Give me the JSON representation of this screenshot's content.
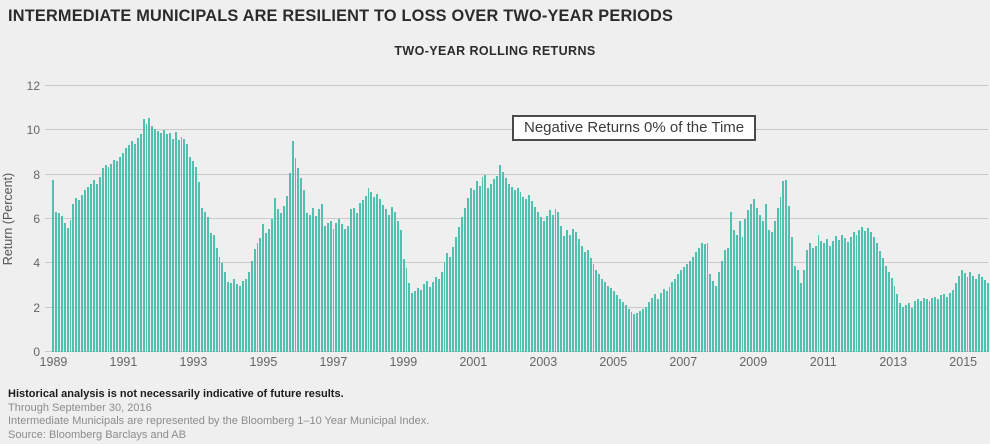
{
  "header": {
    "title": "INTERMEDIATE MUNICIPALS ARE RESILIENT TO LOSS OVER TWO-YEAR PERIODS"
  },
  "chart": {
    "subtitle": "TWO-YEAR ROLLING RETURNS",
    "annotation": "Negative Returns 0% of the Time",
    "y_axis_label": "Return (Percent)"
  },
  "chart_data": {
    "type": "bar",
    "title": "TWO-YEAR ROLLING RETURNS",
    "xlabel": "",
    "ylabel": "Return (Percent)",
    "ylim": [
      0,
      12
    ],
    "yticks": [
      0,
      2,
      4,
      6,
      8,
      10,
      12
    ],
    "grid": "horizontal",
    "bar_color": "#52c0ae",
    "x_start": "1989-01",
    "x_end": "2015-09",
    "x_frequency": "monthly",
    "xtick_labels": [
      "1989",
      "1991",
      "1993",
      "1995",
      "1997",
      "1999",
      "2001",
      "2003",
      "2005",
      "2007",
      "2009",
      "2011",
      "2013",
      "2015"
    ],
    "xtick_month_indices": [
      0,
      24,
      48,
      72,
      96,
      120,
      144,
      168,
      192,
      216,
      240,
      264,
      288,
      312
    ],
    "annotation": "Negative Returns 0% of the Time",
    "values": [
      7.76,
      6.33,
      6.26,
      6.14,
      5.81,
      5.58,
      5.96,
      6.7,
      6.93,
      6.85,
      7.08,
      7.31,
      7.45,
      7.6,
      7.75,
      7.6,
      7.9,
      8.3,
      8.45,
      8.35,
      8.5,
      8.65,
      8.6,
      8.8,
      9.0,
      9.2,
      9.35,
      9.5,
      9.4,
      9.65,
      9.85,
      10.5,
      10.3,
      10.55,
      10.2,
      10.05,
      9.95,
      9.9,
      10.0,
      9.85,
      9.9,
      9.6,
      9.92,
      9.55,
      9.7,
      9.6,
      9.4,
      8.8,
      8.6,
      8.35,
      7.68,
      6.5,
      6.3,
      6.1,
      5.35,
      5.3,
      4.7,
      4.3,
      4.0,
      3.6,
      3.15,
      3.1,
      3.3,
      3.05,
      3.0,
      3.2,
      3.3,
      3.6,
      4.1,
      4.63,
      4.93,
      5.16,
      5.76,
      5.38,
      5.53,
      5.98,
      6.96,
      6.43,
      6.28,
      6.58,
      7.03,
      8.08,
      9.51,
      8.76,
      8.31,
      7.86,
      7.33,
      6.28,
      6.2,
      6.51,
      6.13,
      6.43,
      6.66,
      5.68,
      5.83,
      5.91,
      5.53,
      5.83,
      5.98,
      5.76,
      5.53,
      5.68,
      6.43,
      6.51,
      6.28,
      6.73,
      6.88,
      7.03,
      7.4,
      7.2,
      7.0,
      7.15,
      6.9,
      6.65,
      6.45,
      6.2,
      6.55,
      6.3,
      5.9,
      5.5,
      4.2,
      3.8,
      3.1,
      2.65,
      2.75,
      2.9,
      2.8,
      3.05,
      3.2,
      2.95,
      3.15,
      3.4,
      3.3,
      3.6,
      4.05,
      4.45,
      4.3,
      4.75,
      5.2,
      5.65,
      6.1,
      6.5,
      6.95,
      7.4,
      7.3,
      7.7,
      7.5,
      7.9,
      8.0,
      7.4,
      7.6,
      7.8,
      7.95,
      8.43,
      8.1,
      7.85,
      7.6,
      7.44,
      7.3,
      7.4,
      7.2,
      7.0,
      6.9,
      7.1,
      6.8,
      6.55,
      6.3,
      6.1,
      5.9,
      6.15,
      6.4,
      6.2,
      6.45,
      6.3,
      5.7,
      5.25,
      5.5,
      5.3,
      5.55,
      5.4,
      5.1,
      4.8,
      4.5,
      4.6,
      4.25,
      3.95,
      3.7,
      3.5,
      3.3,
      3.15,
      3.0,
      2.9,
      2.75,
      2.55,
      2.4,
      2.25,
      2.1,
      1.95,
      1.8,
      1.7,
      1.75,
      1.85,
      1.95,
      2.05,
      2.25,
      2.45,
      2.6,
      2.4,
      2.65,
      2.85,
      2.75,
      2.95,
      3.15,
      3.3,
      3.5,
      3.7,
      3.85,
      3.95,
      4.1,
      4.3,
      4.5,
      4.7,
      4.9,
      4.85,
      4.9,
      3.5,
      3.2,
      3.0,
      3.6,
      4.1,
      4.6,
      4.7,
      6.3,
      5.5,
      5.3,
      5.9,
      5.2,
      6.0,
      6.4,
      6.7,
      6.9,
      6.5,
      6.2,
      5.9,
      6.7,
      5.5,
      5.4,
      5.9,
      6.5,
      7.0,
      7.7,
      7.75,
      6.6,
      5.2,
      3.9,
      3.7,
      3.1,
      3.7,
      4.6,
      4.9,
      4.7,
      4.8,
      5.3,
      5.0,
      4.9,
      5.1,
      4.8,
      5.0,
      5.25,
      5.05,
      5.3,
      5.15,
      4.95,
      5.2,
      5.4,
      5.3,
      5.5,
      5.65,
      5.45,
      5.6,
      5.4,
      5.2,
      4.9,
      4.55,
      4.25,
      3.9,
      3.6,
      3.35,
      3.0,
      2.6,
      2.2,
      2.05,
      2.1,
      2.2,
      2.0,
      2.3,
      2.4,
      2.3,
      2.45,
      2.4,
      2.3,
      2.45,
      2.5,
      2.4,
      2.55,
      2.6,
      2.5,
      2.65,
      2.8,
      3.1,
      3.45,
      3.7,
      3.55,
      3.4,
      3.6,
      3.45,
      3.3,
      3.5,
      3.4,
      3.25,
      3.1
    ]
  },
  "footer": {
    "disclaimer": "Historical analysis is not necessarily indicative of future results.",
    "through": "Through September 30, 2016",
    "representation": "Intermediate Municipals are represented by the Bloomberg 1–10 Year Municipal Index.",
    "source": "Source: Bloomberg Barclays and AB"
  }
}
